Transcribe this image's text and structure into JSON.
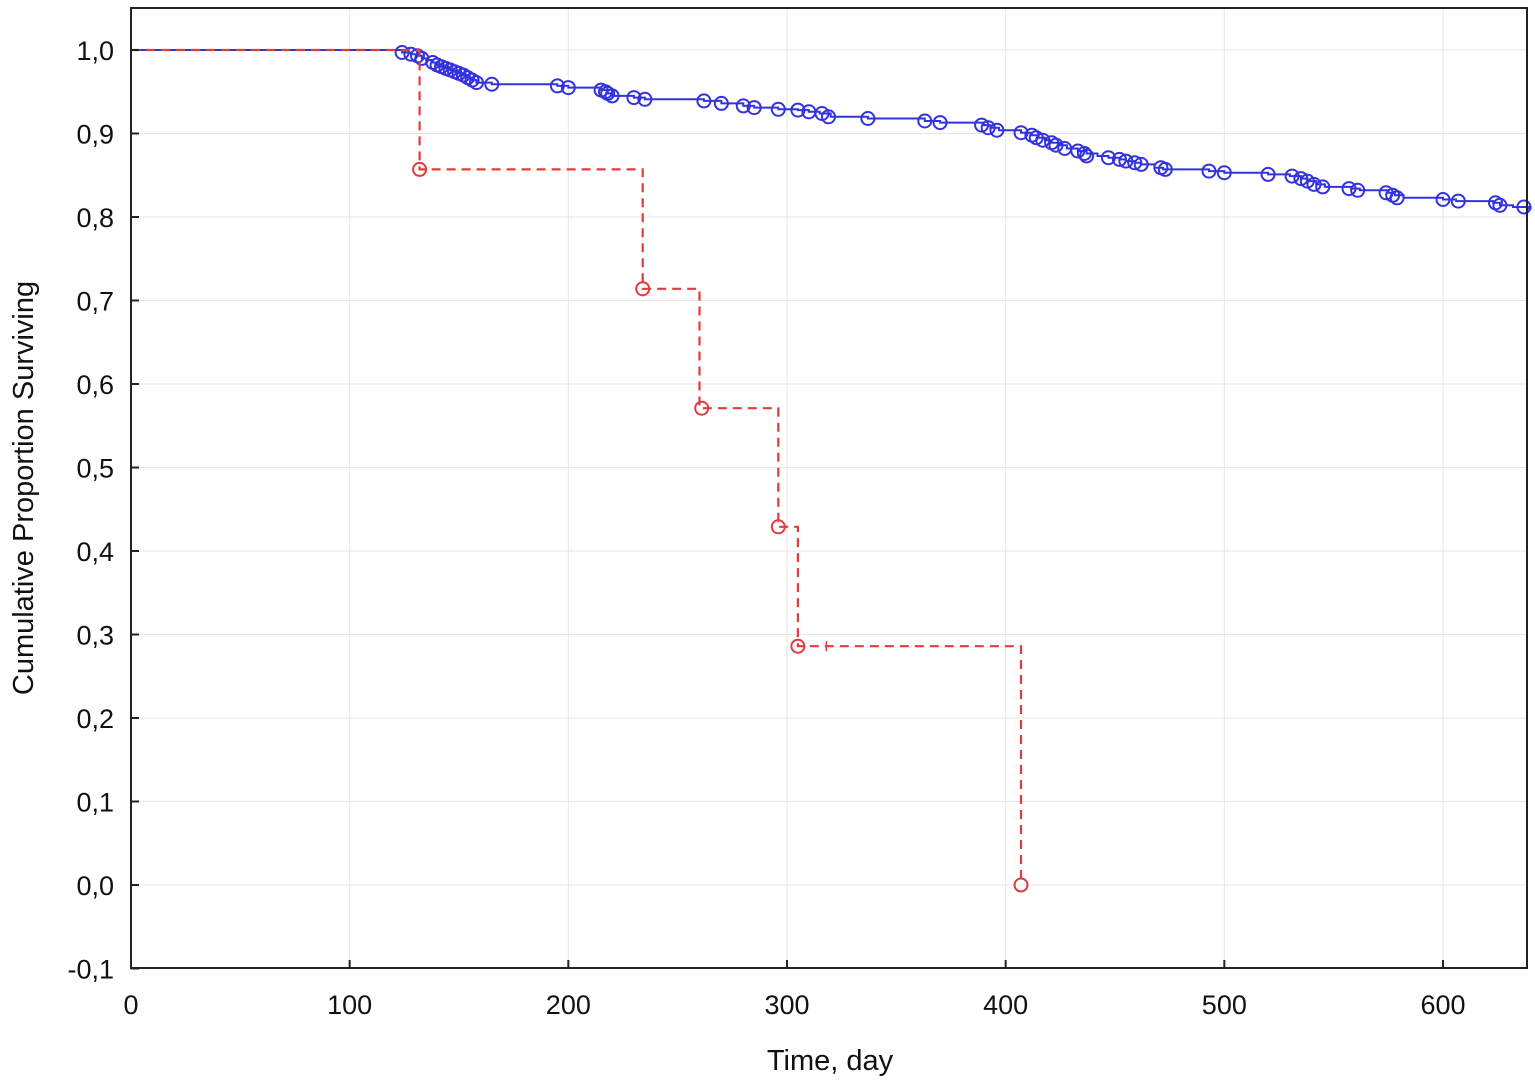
{
  "chart_data": {
    "type": "line",
    "title": "",
    "xlabel": "Time, day",
    "ylabel": "Cumulative Proportion Surviving",
    "xlim": [
      0,
      640
    ],
    "ylim": [
      -0.1,
      1.05
    ],
    "x_ticks": [
      0,
      100,
      200,
      300,
      400,
      500,
      600
    ],
    "x_tick_labels": [
      "0",
      "100",
      "200",
      "300",
      "400",
      "500",
      "600"
    ],
    "y_ticks": [
      -0.1,
      0.0,
      0.1,
      0.2,
      0.3,
      0.4,
      0.5,
      0.6,
      0.7,
      0.8,
      0.9,
      1.0
    ],
    "y_tick_labels": [
      "-0,1",
      "0,0",
      "0,1",
      "0,2",
      "0,3",
      "0,4",
      "0,5",
      "0,6",
      "0,7",
      "0,8",
      "0,9",
      "1,0"
    ],
    "grid": true,
    "colors": {
      "series_1": "#3333dd",
      "series_2": "#e03c3c"
    },
    "series": [
      {
        "line_style": "solid",
        "marker": "circle",
        "steps": [
          [
            0,
            1.0
          ],
          [
            124,
            0.997
          ],
          [
            128,
            0.995
          ],
          [
            131,
            0.993
          ],
          [
            133,
            0.99
          ],
          [
            135,
            0.988
          ],
          [
            138,
            0.985
          ],
          [
            140,
            0.982
          ],
          [
            142,
            0.98
          ],
          [
            144,
            0.978
          ],
          [
            146,
            0.976
          ],
          [
            148,
            0.974
          ],
          [
            150,
            0.972
          ],
          [
            152,
            0.97
          ],
          [
            154,
            0.967
          ],
          [
            156,
            0.964
          ],
          [
            158,
            0.961
          ],
          [
            165,
            0.959
          ],
          [
            195,
            0.957
          ],
          [
            200,
            0.955
          ],
          [
            215,
            0.952
          ],
          [
            218,
            0.948
          ],
          [
            220,
            0.945
          ],
          [
            230,
            0.943
          ],
          [
            235,
            0.941
          ],
          [
            262,
            0.939
          ],
          [
            270,
            0.936
          ],
          [
            280,
            0.933
          ],
          [
            285,
            0.931
          ],
          [
            296,
            0.929
          ],
          [
            305,
            0.928
          ],
          [
            310,
            0.926
          ],
          [
            315,
            0.924
          ],
          [
            320,
            0.92
          ],
          [
            337,
            0.918
          ],
          [
            363,
            0.915
          ],
          [
            370,
            0.913
          ],
          [
            390,
            0.91
          ],
          [
            393,
            0.907
          ],
          [
            397,
            0.904
          ],
          [
            407,
            0.901
          ],
          [
            412,
            0.898
          ],
          [
            415,
            0.895
          ],
          [
            418,
            0.892
          ],
          [
            421,
            0.889
          ],
          [
            425,
            0.886
          ],
          [
            428,
            0.882
          ],
          [
            433,
            0.879
          ],
          [
            437,
            0.876
          ],
          [
            442,
            0.873
          ],
          [
            447,
            0.871
          ],
          [
            452,
            0.869
          ],
          [
            455,
            0.867
          ],
          [
            459,
            0.865
          ],
          [
            462,
            0.863
          ],
          [
            468,
            0.859
          ],
          [
            472,
            0.857
          ],
          [
            493,
            0.855
          ],
          [
            500,
            0.853
          ],
          [
            520,
            0.851
          ],
          [
            530,
            0.849
          ],
          [
            535,
            0.846
          ],
          [
            538,
            0.843
          ],
          [
            542,
            0.839
          ],
          [
            546,
            0.836
          ],
          [
            558,
            0.834
          ],
          [
            562,
            0.832
          ],
          [
            575,
            0.829
          ],
          [
            578,
            0.826
          ],
          [
            582,
            0.823
          ],
          [
            600,
            0.821
          ],
          [
            606,
            0.819
          ],
          [
            623,
            0.817
          ],
          [
            626,
            0.814
          ],
          [
            632,
            0.812
          ],
          [
            640,
            0.81
          ]
        ],
        "markers": [
          [
            124,
            0.997
          ],
          [
            128,
            0.995
          ],
          [
            131,
            0.993
          ],
          [
            133,
            0.99
          ],
          [
            138,
            0.985
          ],
          [
            140,
            0.982
          ],
          [
            142,
            0.98
          ],
          [
            144,
            0.978
          ],
          [
            146,
            0.976
          ],
          [
            148,
            0.974
          ],
          [
            150,
            0.972
          ],
          [
            152,
            0.97
          ],
          [
            154,
            0.967
          ],
          [
            156,
            0.964
          ],
          [
            158,
            0.961
          ],
          [
            165,
            0.959
          ],
          [
            195,
            0.957
          ],
          [
            200,
            0.955
          ],
          [
            215,
            0.952
          ],
          [
            217,
            0.95
          ],
          [
            218,
            0.948
          ],
          [
            220,
            0.945
          ],
          [
            230,
            0.943
          ],
          [
            235,
            0.941
          ],
          [
            262,
            0.939
          ],
          [
            270,
            0.936
          ],
          [
            280,
            0.933
          ],
          [
            285,
            0.931
          ],
          [
            296,
            0.929
          ],
          [
            305,
            0.928
          ],
          [
            310,
            0.926
          ],
          [
            316,
            0.924
          ],
          [
            319,
            0.92
          ],
          [
            337,
            0.918
          ],
          [
            363,
            0.915
          ],
          [
            370,
            0.913
          ],
          [
            389,
            0.91
          ],
          [
            392,
            0.907
          ],
          [
            396,
            0.904
          ],
          [
            407,
            0.901
          ],
          [
            412,
            0.898
          ],
          [
            414,
            0.895
          ],
          [
            417,
            0.892
          ],
          [
            421,
            0.889
          ],
          [
            423,
            0.886
          ],
          [
            427,
            0.882
          ],
          [
            433,
            0.879
          ],
          [
            436,
            0.876
          ],
          [
            437,
            0.873
          ],
          [
            447,
            0.871
          ],
          [
            452,
            0.869
          ],
          [
            455,
            0.867
          ],
          [
            459,
            0.865
          ],
          [
            462,
            0.863
          ],
          [
            471,
            0.859
          ],
          [
            473,
            0.857
          ],
          [
            493,
            0.855
          ],
          [
            500,
            0.853
          ],
          [
            520,
            0.851
          ],
          [
            531,
            0.849
          ],
          [
            535,
            0.846
          ],
          [
            538,
            0.843
          ],
          [
            541,
            0.839
          ],
          [
            545,
            0.836
          ],
          [
            557,
            0.834
          ],
          [
            561,
            0.832
          ],
          [
            574,
            0.829
          ],
          [
            577,
            0.826
          ],
          [
            579,
            0.823
          ],
          [
            600,
            0.821
          ],
          [
            607,
            0.819
          ],
          [
            624,
            0.817
          ],
          [
            626,
            0.814
          ],
          [
            637,
            0.812
          ]
        ]
      },
      {
        "line_style": "dashed",
        "marker": "circle",
        "steps": [
          [
            0,
            1.0
          ],
          [
            132,
            0.857
          ],
          [
            234,
            0.714
          ],
          [
            260,
            0.571
          ],
          [
            296,
            0.429
          ],
          [
            305,
            0.286
          ],
          [
            407,
            0.0
          ]
        ],
        "markers": [
          [
            132,
            0.857
          ],
          [
            234,
            0.714
          ],
          [
            261,
            0.571
          ],
          [
            296,
            0.429
          ],
          [
            305,
            0.286
          ],
          [
            407,
            0.0
          ]
        ],
        "censored": [
          [
            318,
            0.286
          ]
        ]
      }
    ]
  }
}
